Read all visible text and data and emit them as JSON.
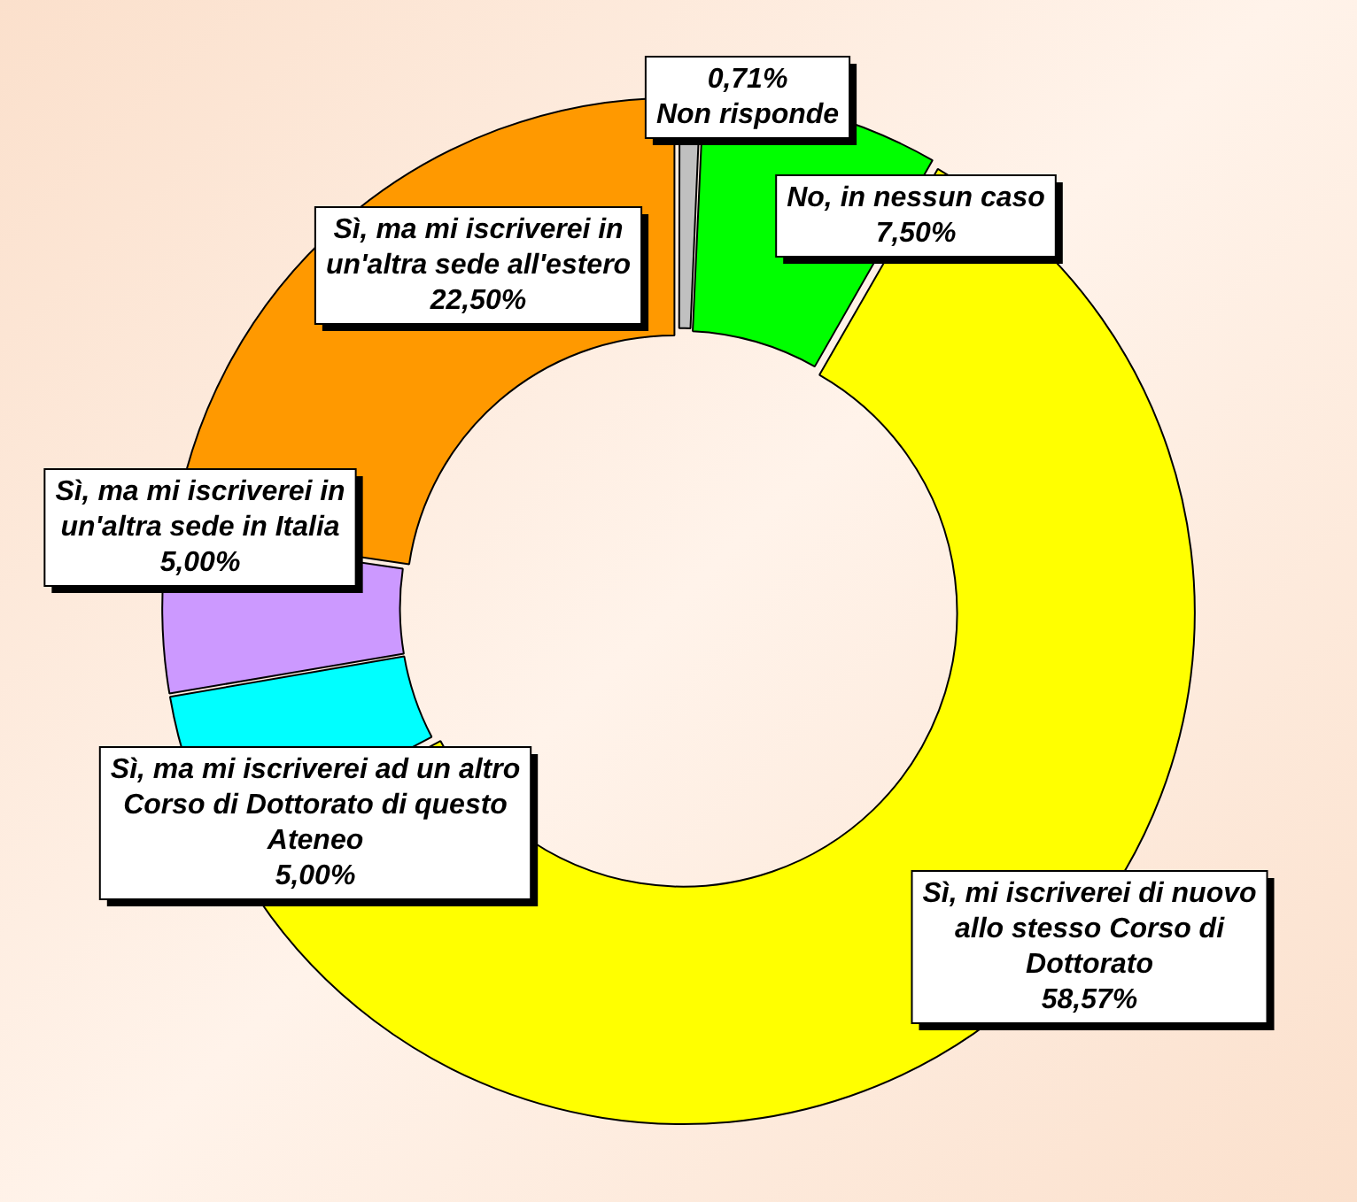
{
  "chart_data": {
    "type": "donut",
    "categories": [
      "Non risponde",
      "No, in nessun caso",
      "Sì, mi iscriverei di nuovo allo stesso Corso di Dottorato",
      "Sì, ma mi iscriverei ad un altro Corso di Dottorato di questo Ateneo",
      "Sì, ma mi iscriverei in un'altra sede in Italia",
      "Sì, ma mi iscriverei in un'altra sede all'estero"
    ],
    "values": [
      0.71,
      7.5,
      58.57,
      5,
      5,
      22.5
    ],
    "value_labels": [
      "0,71%",
      "7,50%",
      "58,57%",
      "5,00%",
      "5,00%",
      "22,50%"
    ],
    "colors": [
      "#c0c0c0",
      "#00ff00",
      "#ffff00",
      "#00ffff",
      "#cc99ff",
      "#ff9900"
    ],
    "legend": false
  }
}
